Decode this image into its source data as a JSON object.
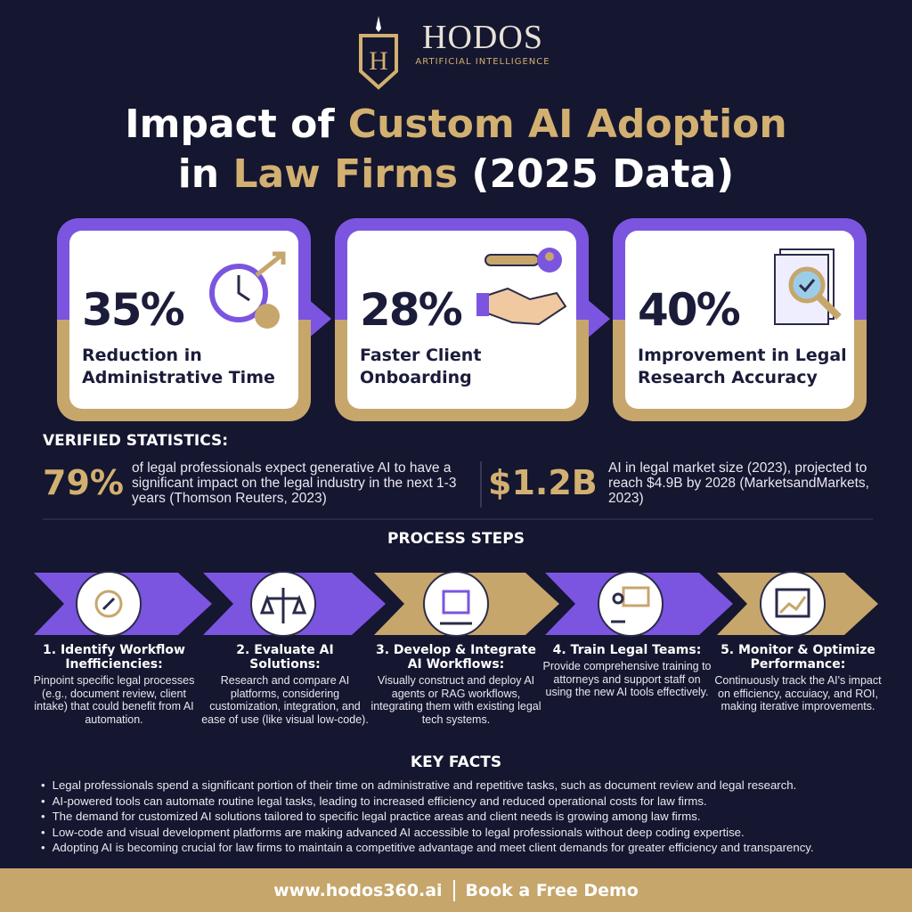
{
  "brand": {
    "name": "HODOS",
    "tagline": "ARTIFICIAL INTELLIGENCE"
  },
  "title": {
    "parts": [
      "Impact of ",
      "Custom AI Adoption",
      "in ",
      "Law Firms",
      " (2025 Data)"
    ]
  },
  "cards": [
    {
      "value": "35%",
      "label": "Reduction in Administrative Time"
    },
    {
      "value": "28%",
      "label": "Faster Client Onboarding"
    },
    {
      "value": "40%",
      "label": "Improvement in Legal Research Accuracy"
    }
  ],
  "verified": {
    "heading": "VERIFIED STATISTICS:",
    "items": [
      {
        "value": "79%",
        "text": "of legal professionals expect generative AI to have a significant impact on the legal industry in the next 1-3 years (Thomson Reuters, 2023)"
      },
      {
        "value": "$1.2B",
        "text": "AI in legal market size (2023), projected to reach $4.9B by 2028 (MarketsandMarkets, 2023)"
      }
    ]
  },
  "process": {
    "heading": "PROCESS STEPS",
    "steps": [
      {
        "title": "1. Identify Workflow Inefficiencies:",
        "text": "Pinpoint specific legal processes (e.g., document review, client intake) that could benefit from AI automation."
      },
      {
        "title": "2. Evaluate AI Solutions:",
        "text": "Research and compare AI platforms, considering customization, integration, and ease of use (like visual low-code)."
      },
      {
        "title": "3. Develop & Integrate AI Workflows:",
        "text": "Visually construct and deploy AI agents or RAG workflows, integrating them with existing legal tech systems."
      },
      {
        "title": "4. Train Legal Teams:",
        "text": "Provide comprehensive training to attorneys and support staff on using the new AI tools effectively."
      },
      {
        "title": "5. Monitor & Optimize Performance:",
        "text": "Continuously track the AI's impact on efficiency, accuiacy, and ROI, making iterative improvements."
      }
    ]
  },
  "key_facts": {
    "heading": "KEY FACTS",
    "items": [
      "Legal professionals spend a significant portion of their time on administrative and repetitive tasks, such as document review and legal research.",
      "AI-powered tools can automate routine legal tasks, leading to increased efficiency and reduced operational costs for law firms.",
      "The demand for customized AI solutions tailored to specific legal practice areas and client needs is growing among law firms.",
      "Low-code and visual development platforms are making advanced AI accessible to legal professionals without deep coding expertise.",
      "Adopting AI is becoming crucial for law firms to maintain a competitive advantage and meet client demands for greater efficiency and transparency."
    ]
  },
  "footer": {
    "website": "www.hodos360.ai",
    "cta": "Book a Free Demo"
  }
}
